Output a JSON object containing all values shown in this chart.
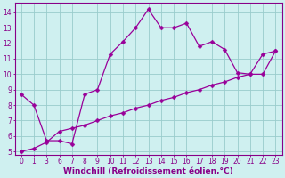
{
  "x_labels": [
    "0",
    "1",
    "3",
    "6",
    "7",
    "8",
    "9",
    "10",
    "11",
    "12",
    "13",
    "14",
    "15",
    "16",
    "17",
    "18",
    "19",
    "20",
    "21",
    "22",
    "23"
  ],
  "y_main": [
    8.7,
    8.0,
    5.7,
    5.7,
    5.5,
    8.7,
    9.0,
    11.3,
    12.1,
    13.0,
    14.2,
    13.0,
    13.0,
    13.3,
    11.8,
    12.1,
    11.6,
    10.1,
    10.0,
    10.0,
    11.5
  ],
  "y_reg": [
    5.0,
    5.2,
    5.6,
    6.3,
    6.5,
    6.7,
    7.0,
    7.3,
    7.5,
    7.8,
    8.0,
    8.3,
    8.5,
    8.8,
    9.0,
    9.3,
    9.5,
    9.8,
    10.0,
    11.3,
    11.5
  ],
  "line_color": "#990099",
  "bg_color": "#cff0f0",
  "grid_color": "#99cccc",
  "xlabel": "Windchill (Refroidissement éolien,°C)",
  "ylim": [
    4.8,
    14.6
  ],
  "yticks": [
    5,
    6,
    7,
    8,
    9,
    10,
    11,
    12,
    13,
    14
  ],
  "markersize": 2.5,
  "linewidth": 0.9,
  "xlabel_fontsize": 6.5,
  "tick_fontsize": 5.5,
  "tick_color": "#880088",
  "axis_color": "#880088"
}
